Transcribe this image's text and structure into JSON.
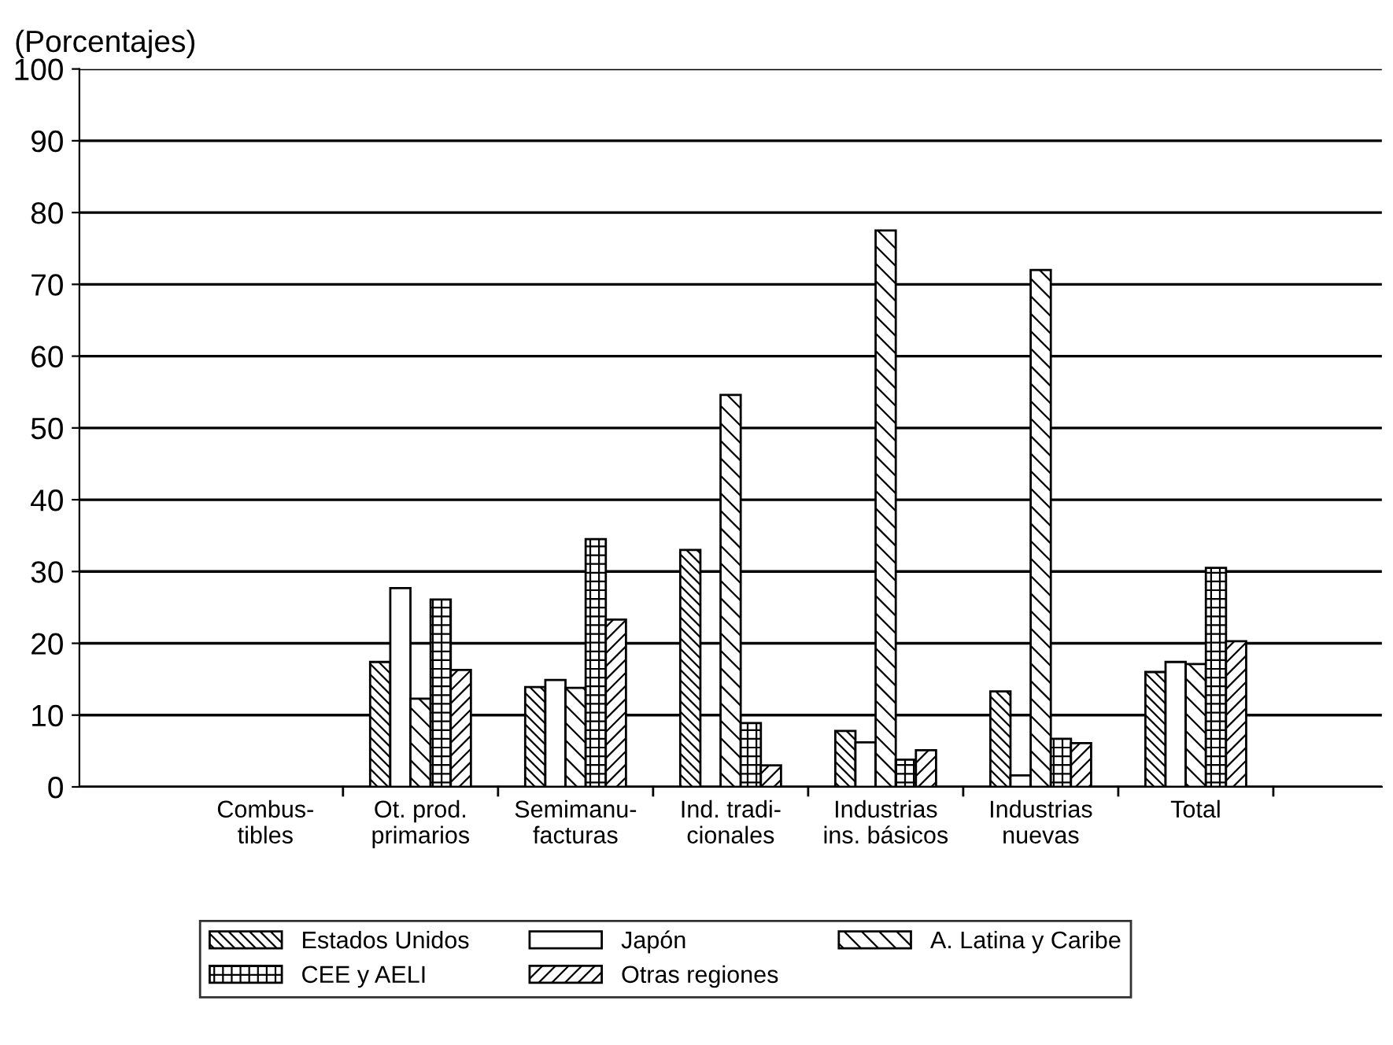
{
  "chart_data": {
    "type": "bar",
    "ylabel": "(Porcentajes)",
    "categories": [
      "Combus-\ntibles",
      "Ot. prod.\nprimarios",
      "Semimanu-\nfacturas",
      "Ind. tradi-\ncionales",
      "Industrias\nins. básicos",
      "Industrias\nnuevas",
      "Total"
    ],
    "series": [
      {
        "name": "Estados Unidos",
        "color": "#000000",
        "values": [
          0,
          17.4,
          13.9,
          33,
          7.8,
          13.3,
          16
        ]
      },
      {
        "name": "Japón",
        "color": "#ffffff",
        "values": [
          0,
          27.7,
          14.9,
          0,
          6.2,
          1.6,
          17.4
        ]
      },
      {
        "name": "A. Latina y Caribe",
        "color": "#000000",
        "values": [
          0,
          12.3,
          13.8,
          54.6,
          77.5,
          72,
          17.1
        ]
      },
      {
        "name": "CEE y AELI",
        "color": "#000000",
        "values": [
          0,
          26.1,
          34.5,
          8.9,
          3.8,
          6.7,
          30.5
        ]
      },
      {
        "name": "Otras regiones",
        "color": "#000000",
        "values": [
          0,
          16.3,
          23.3,
          3,
          5.1,
          6.1,
          20.3
        ]
      }
    ],
    "ylim": [
      0,
      100
    ],
    "yticks": [
      0,
      10,
      20,
      30,
      40,
      50,
      60,
      70,
      80,
      90,
      100
    ],
    "grid": "y",
    "legend": "bottom"
  }
}
